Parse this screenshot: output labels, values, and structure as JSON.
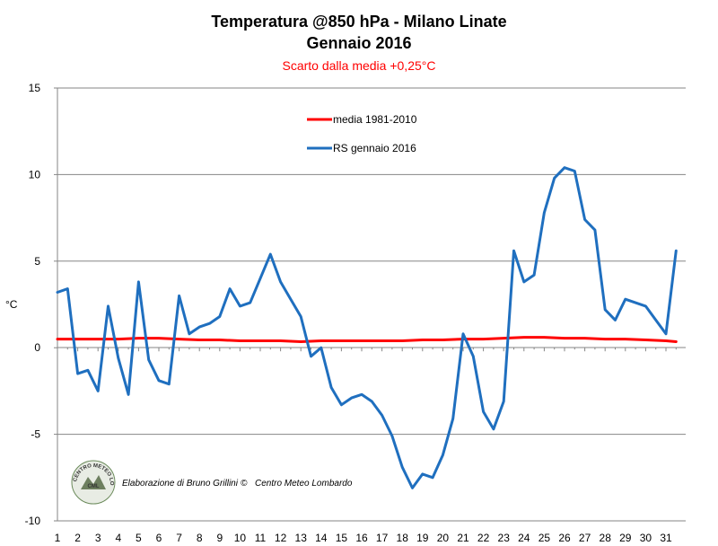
{
  "chart_data": {
    "type": "line",
    "title": "Temperatura @850 hPa - Milano Linate",
    "title_line2": "Gennaio 2016",
    "subtitle": "Scarto dalla media +0,25°C",
    "ylabel": "°C",
    "xlabel": "",
    "ylim": [
      -10,
      15
    ],
    "yticks": [
      "15",
      "10",
      "5",
      "0",
      "-5",
      "-10"
    ],
    "xticks": [
      "1",
      "2",
      "3",
      "4",
      "5",
      "6",
      "7",
      "8",
      "9",
      "10",
      "11",
      "12",
      "13",
      "14",
      "15",
      "16",
      "17",
      "18",
      "19",
      "20",
      "21",
      "22",
      "23",
      "24",
      "25",
      "26",
      "27",
      "28",
      "29",
      "30",
      "31"
    ],
    "grid": "horizontal",
    "legend_position": "top-center",
    "series": [
      {
        "name": "media 1981-2010",
        "color": "#ff0000",
        "x": [
          1,
          2,
          3,
          4,
          5,
          6,
          7,
          8,
          9,
          10,
          11,
          12,
          13,
          14,
          15,
          16,
          17,
          18,
          19,
          20,
          21,
          22,
          23,
          24,
          25,
          26,
          27,
          28,
          29,
          30,
          31,
          31.5
        ],
        "values": [
          0.5,
          0.5,
          0.5,
          0.5,
          0.55,
          0.55,
          0.5,
          0.45,
          0.45,
          0.4,
          0.4,
          0.4,
          0.35,
          0.4,
          0.4,
          0.4,
          0.4,
          0.4,
          0.45,
          0.45,
          0.5,
          0.5,
          0.55,
          0.6,
          0.6,
          0.55,
          0.55,
          0.5,
          0.5,
          0.45,
          0.4,
          0.35
        ]
      },
      {
        "name": "RS gennaio 2016",
        "color": "#1f6fbf",
        "x": [
          1,
          1.5,
          2,
          2.5,
          3,
          3.5,
          4,
          4.5,
          5,
          5.5,
          6,
          6.5,
          7,
          7.5,
          8,
          8.5,
          9,
          9.5,
          10,
          10.5,
          11,
          11.5,
          12,
          12.5,
          13,
          13.5,
          14,
          14.5,
          15,
          15.5,
          16,
          16.5,
          17,
          17.5,
          18,
          18.5,
          19,
          19.5,
          20,
          20.5,
          21,
          21.5,
          22,
          22.5,
          23,
          23.5,
          24,
          24.5,
          25,
          25.5,
          26,
          26.5,
          27,
          27.5,
          28,
          28.5,
          29,
          29.5,
          30,
          30.5,
          31,
          31.5
        ],
        "values": [
          3.2,
          3.4,
          -1.5,
          -1.3,
          -2.5,
          2.4,
          -0.6,
          -2.7,
          3.8,
          -0.7,
          -1.9,
          -2.1,
          3.0,
          0.8,
          1.2,
          1.4,
          1.8,
          3.4,
          2.4,
          2.6,
          4.0,
          5.4,
          3.8,
          2.8,
          1.8,
          -0.5,
          0.0,
          -2.3,
          -3.3,
          -2.9,
          -2.7,
          -3.1,
          -3.9,
          -5.1,
          -6.9,
          -8.1,
          -7.3,
          -7.5,
          -6.2,
          -4.1,
          0.8,
          -0.5,
          -3.7,
          -4.7,
          -3.1,
          5.6,
          3.8,
          4.2,
          7.8,
          9.8,
          10.4,
          10.2,
          7.4,
          6.8,
          2.2,
          1.6,
          2.8,
          2.6,
          2.4,
          1.6,
          0.8,
          5.6
        ]
      }
    ]
  },
  "credits": {
    "text": "Elaborazione di Bruno Grillini",
    "copyright_symbol": "©",
    "org": "Centro Meteo Lombardo"
  },
  "logo": {
    "text": "CENTRO METEO LOMBARDO",
    "initials": "CML"
  }
}
